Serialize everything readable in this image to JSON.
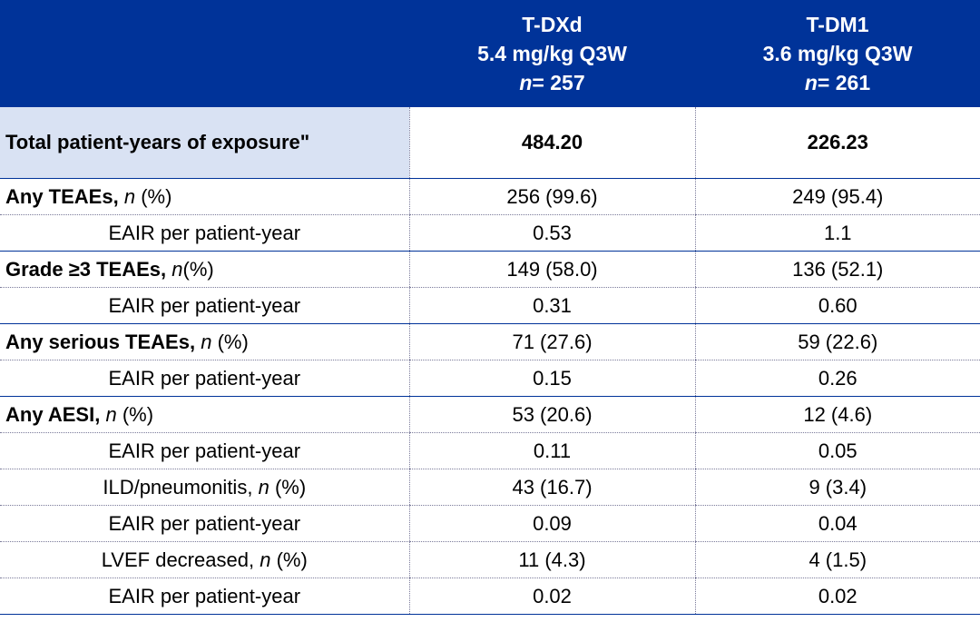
{
  "header": {
    "col1": {
      "name": "T-DXd",
      "dose": "5.4 mg/kg Q3W",
      "n_italic": "n",
      "n_rest": "= 257"
    },
    "col2": {
      "name": "T-DM1",
      "dose": "3.6 mg/kg Q3W",
      "n_italic": "n",
      "n_rest": "= 261"
    }
  },
  "colors": {
    "header_bg": "#003399",
    "label_bg": "#d9e2f3"
  },
  "rows": [
    {
      "label": "Total patient-years of exposure\"",
      "v1": "484.20",
      "v2": "226.23"
    },
    {
      "label_bold": "Any TEAEs,",
      "label_italic": "n",
      "label_rest": "(%)",
      "v1": "256 (99.6)",
      "v2": "249 (95.4)"
    },
    {
      "label": "EAIR per patient-year",
      "v1": "0.53",
      "v2": "1.1"
    },
    {
      "label_bold": "Grade ≥3 TEAEs,",
      "label_italic": "n",
      "label_rest": "(%)",
      "v1": "149 (58.0)",
      "v2": "136 (52.1)"
    },
    {
      "label": "EAIR per patient-year",
      "v1": "0.31",
      "v2": "0.60"
    },
    {
      "label_bold": "Any serious TEAEs,",
      "label_italic": "n",
      "label_rest": "(%)",
      "v1": "71 (27.6)",
      "v2": "59 (22.6)"
    },
    {
      "label": "EAIR per patient-year",
      "v1": "0.15",
      "v2": "0.26"
    },
    {
      "label_bold": "Any AESI,",
      "label_italic": "n",
      "label_rest": "(%)",
      "v1": "53 (20.6)",
      "v2": "12 (4.6)"
    },
    {
      "label": "EAIR per patient-year",
      "v1": "0.11",
      "v2": "0.05"
    },
    {
      "label_pre": "ILD/pneumonitis,",
      "label_italic": "n",
      "label_rest": "(%)",
      "v1": "43 (16.7)",
      "v2": "9 (3.4)"
    },
    {
      "label": "EAIR per patient-year",
      "v1": "0.09",
      "v2": "0.04"
    },
    {
      "label_pre": "LVEF decreased,",
      "label_italic": "n",
      "label_rest": "(%)",
      "v1": "11 (4.3)",
      "v2": "4 (1.5)"
    },
    {
      "label": "EAIR per patient-year",
      "v1": "0.02",
      "v2": "0.02"
    }
  ]
}
